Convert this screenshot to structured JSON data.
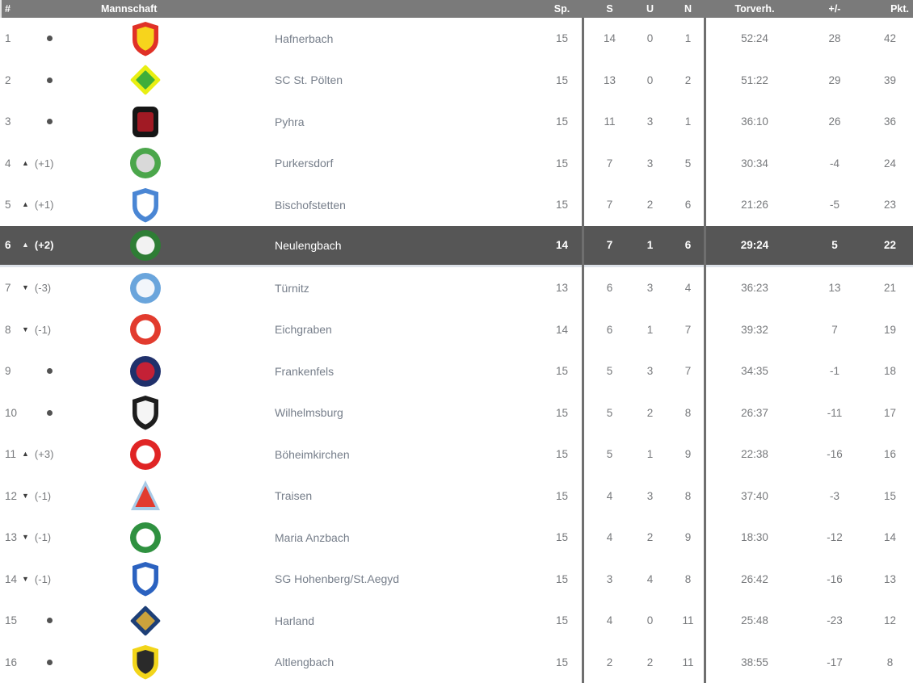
{
  "header": {
    "rank": "#",
    "team": "Mannschaft",
    "sp": "Sp.",
    "s": "S",
    "u": "U",
    "n": "N",
    "torverh": "Torverh.",
    "diff": "+/-",
    "pkt": "Pkt."
  },
  "colors": {
    "header_bg": "#7a7a7a",
    "highlight_bg": "#565656",
    "divider": "#6f6f6f",
    "number_text": "#77797c",
    "team_text": "#767e8a"
  },
  "icons": {
    "up_arrow": "▲",
    "down_arrow": "▼",
    "no_change_dot": "no-change-dot"
  },
  "rows": [
    {
      "rank": "1",
      "movement": {
        "dir": "none",
        "delta": ""
      },
      "team": "Hafnerbach",
      "logo": {
        "name": "hafnerbach",
        "shape": "shield",
        "colors": [
          "#e03127",
          "#f7d41c"
        ]
      },
      "sp": "15",
      "s": "14",
      "u": "0",
      "n": "1",
      "torverh": "52:24",
      "diff": "28",
      "pkt": "42",
      "highlight": false
    },
    {
      "rank": "2",
      "movement": {
        "dir": "none",
        "delta": ""
      },
      "team": "SC St. Pölten",
      "logo": {
        "name": "sc-st-poelten",
        "shape": "diamond",
        "colors": [
          "#e8ef12",
          "#3fae3a"
        ]
      },
      "sp": "15",
      "s": "13",
      "u": "0",
      "n": "2",
      "torverh": "51:22",
      "diff": "29",
      "pkt": "39",
      "highlight": false
    },
    {
      "rank": "3",
      "movement": {
        "dir": "none",
        "delta": ""
      },
      "team": "Pyhra",
      "logo": {
        "name": "pyhra",
        "shape": "roundsquare",
        "colors": [
          "#161616",
          "#a11a24"
        ]
      },
      "sp": "15",
      "s": "11",
      "u": "3",
      "n": "1",
      "torverh": "36:10",
      "diff": "26",
      "pkt": "36",
      "highlight": false
    },
    {
      "rank": "4",
      "movement": {
        "dir": "up",
        "delta": "(+1)"
      },
      "team": "Purkersdorf",
      "logo": {
        "name": "purkersdorf",
        "shape": "circle",
        "colors": [
          "#4ba64b",
          "#d9d9d9"
        ]
      },
      "sp": "15",
      "s": "7",
      "u": "3",
      "n": "5",
      "torverh": "30:34",
      "diff": "-4",
      "pkt": "24",
      "highlight": false
    },
    {
      "rank": "5",
      "movement": {
        "dir": "up",
        "delta": "(+1)"
      },
      "team": "Bischofstetten",
      "logo": {
        "name": "bischofstetten",
        "shape": "shield",
        "colors": [
          "#4a86d4",
          "#ffffff"
        ]
      },
      "sp": "15",
      "s": "7",
      "u": "2",
      "n": "6",
      "torverh": "21:26",
      "diff": "-5",
      "pkt": "23",
      "highlight": false
    },
    {
      "rank": "6",
      "movement": {
        "dir": "up",
        "delta": "(+2)"
      },
      "team": "Neulengbach",
      "logo": {
        "name": "neulengbach",
        "shape": "circle",
        "colors": [
          "#2e7d35",
          "#f2f2f2"
        ]
      },
      "sp": "14",
      "s": "7",
      "u": "1",
      "n": "6",
      "torverh": "29:24",
      "diff": "5",
      "pkt": "22",
      "highlight": true
    },
    {
      "rank": "7",
      "movement": {
        "dir": "down",
        "delta": "(-3)"
      },
      "team": "Türnitz",
      "logo": {
        "name": "tuernitz",
        "shape": "circle",
        "colors": [
          "#6aa5dc",
          "#f2f6fb"
        ]
      },
      "sp": "13",
      "s": "6",
      "u": "3",
      "n": "4",
      "torverh": "36:23",
      "diff": "13",
      "pkt": "21",
      "highlight": false
    },
    {
      "rank": "8",
      "movement": {
        "dir": "down",
        "delta": "(-1)"
      },
      "team": "Eichgraben",
      "logo": {
        "name": "eichgraben",
        "shape": "circle",
        "colors": [
          "#e23b2e",
          "#ffffff"
        ]
      },
      "sp": "14",
      "s": "6",
      "u": "1",
      "n": "7",
      "torverh": "39:32",
      "diff": "7",
      "pkt": "19",
      "highlight": false
    },
    {
      "rank": "9",
      "movement": {
        "dir": "none",
        "delta": ""
      },
      "team": "Frankenfels",
      "logo": {
        "name": "frankenfels",
        "shape": "circle",
        "colors": [
          "#20306b",
          "#c42136"
        ]
      },
      "sp": "15",
      "s": "5",
      "u": "3",
      "n": "7",
      "torverh": "34:35",
      "diff": "-1",
      "pkt": "18",
      "highlight": false
    },
    {
      "rank": "10",
      "movement": {
        "dir": "none",
        "delta": ""
      },
      "team": "Wilhelmsburg",
      "logo": {
        "name": "wilhelmsburg",
        "shape": "shield",
        "colors": [
          "#1d1d1d",
          "#f5f5f5"
        ]
      },
      "sp": "15",
      "s": "5",
      "u": "2",
      "n": "8",
      "torverh": "26:37",
      "diff": "-11",
      "pkt": "17",
      "highlight": false
    },
    {
      "rank": "11",
      "movement": {
        "dir": "up",
        "delta": "(+3)"
      },
      "team": "Böheimkirchen",
      "logo": {
        "name": "boeheimkirchen",
        "shape": "circle",
        "colors": [
          "#e02525",
          "#ffffff"
        ]
      },
      "sp": "15",
      "s": "5",
      "u": "1",
      "n": "9",
      "torverh": "22:38",
      "diff": "-16",
      "pkt": "16",
      "highlight": false
    },
    {
      "rank": "12",
      "movement": {
        "dir": "down",
        "delta": "(-1)"
      },
      "team": "Traisen",
      "logo": {
        "name": "traisen",
        "shape": "triangle",
        "colors": [
          "#e23b30",
          "#a8cbe8"
        ]
      },
      "sp": "15",
      "s": "4",
      "u": "3",
      "n": "8",
      "torverh": "37:40",
      "diff": "-3",
      "pkt": "15",
      "highlight": false
    },
    {
      "rank": "13",
      "movement": {
        "dir": "down",
        "delta": "(-1)"
      },
      "team": "Maria Anzbach",
      "logo": {
        "name": "maria-anzbach",
        "shape": "circle",
        "colors": [
          "#2f9140",
          "#ffffff"
        ]
      },
      "sp": "15",
      "s": "4",
      "u": "2",
      "n": "9",
      "torverh": "18:30",
      "diff": "-12",
      "pkt": "14",
      "highlight": false
    },
    {
      "rank": "14",
      "movement": {
        "dir": "down",
        "delta": "(-1)"
      },
      "team": "SG Hohenberg/St.Aegyd",
      "logo": {
        "name": "sg-hohenberg",
        "shape": "shield",
        "colors": [
          "#2b62c0",
          "#ffffff"
        ]
      },
      "sp": "15",
      "s": "3",
      "u": "4",
      "n": "8",
      "torverh": "26:42",
      "diff": "-16",
      "pkt": "13",
      "highlight": false
    },
    {
      "rank": "15",
      "movement": {
        "dir": "none",
        "delta": ""
      },
      "team": "Harland",
      "logo": {
        "name": "harland",
        "shape": "diamond",
        "colors": [
          "#1d3f77",
          "#caa23c"
        ]
      },
      "sp": "15",
      "s": "4",
      "u": "0",
      "n": "11",
      "torverh": "25:48",
      "diff": "-23",
      "pkt": "12",
      "highlight": false
    },
    {
      "rank": "16",
      "movement": {
        "dir": "none",
        "delta": ""
      },
      "team": "Altlengbach",
      "logo": {
        "name": "altlengbach",
        "shape": "shield",
        "colors": [
          "#f2d51a",
          "#2a2a2a"
        ]
      },
      "sp": "15",
      "s": "2",
      "u": "2",
      "n": "11",
      "torverh": "38:55",
      "diff": "-17",
      "pkt": "8",
      "highlight": false
    }
  ]
}
